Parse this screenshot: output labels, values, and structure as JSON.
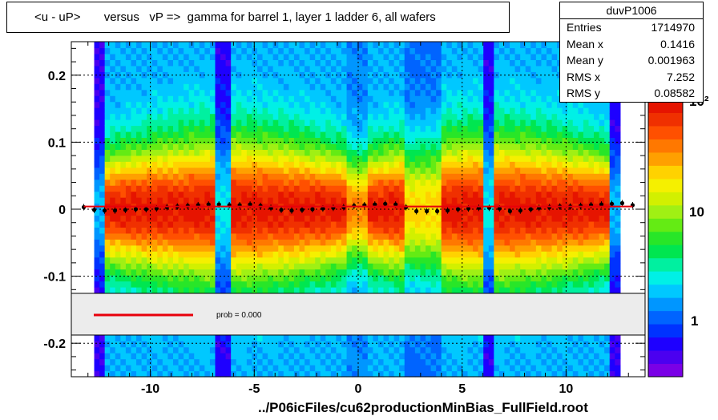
{
  "title": "<u - uP>       versus   vP =>  gamma for barrel 1, layer 1 ladder 6, all wafers",
  "footer": "../P06icFiles/cu62productionMinBias_FullField.root",
  "stats": {
    "name": "duvP1006",
    "rows": [
      {
        "label": "Entries",
        "value": "1714970"
      },
      {
        "label": "Mean x",
        "value": "0.1416"
      },
      {
        "label": "Mean y",
        "value": "0.001963"
      },
      {
        "label": "RMS x",
        "value": "7.252"
      },
      {
        "label": "RMS y",
        "value": "0.08582"
      }
    ]
  },
  "legend": {
    "fit_label": "prob = 0.000",
    "fit_color": "#e8000b"
  },
  "colorbar": {
    "labels": [
      "1",
      "10",
      "10²"
    ]
  },
  "chart_data": {
    "type": "heatmap",
    "title": "<u - uP>       versus   vP =>  gamma for barrel 1, layer 1 ladder 6, all wafers",
    "xlabel": "",
    "ylabel": "",
    "xlim": [
      -13.8,
      13.8
    ],
    "ylim": [
      -0.25,
      0.25
    ],
    "x_ticks": [
      "-10",
      "-5",
      "0",
      "5",
      "10"
    ],
    "y_ticks": [
      "-0.2",
      "-0.1",
      "0",
      "0.1",
      "0.2"
    ],
    "z_scale": "log",
    "grid": true,
    "profile": {
      "x": [
        -13.2,
        -12.7,
        -12.2,
        -11.7,
        -11.2,
        -10.7,
        -10.2,
        -9.7,
        -9.2,
        -8.7,
        -8.2,
        -7.7,
        -7.2,
        -6.7,
        -6.2,
        -5.7,
        -5.2,
        -4.7,
        -4.2,
        -3.7,
        -3.2,
        -2.7,
        -2.2,
        -1.7,
        -1.2,
        -0.7,
        -0.2,
        0.3,
        0.8,
        1.3,
        1.8,
        2.3,
        2.8,
        3.3,
        3.8,
        4.3,
        4.8,
        5.3,
        5.8,
        6.3,
        6.8,
        7.3,
        7.8,
        8.3,
        8.7,
        9.2,
        9.7,
        10.2,
        10.7,
        11.2,
        11.7,
        12.2,
        12.7,
        13.2
      ],
      "y": [
        0.003,
        -0.001,
        -0.002,
        -0.002,
        -0.001,
        0.0,
        0.0,
        0.001,
        0.003,
        0.004,
        0.005,
        0.006,
        0.007,
        0.007,
        0.006,
        0.006,
        0.007,
        0.005,
        0.002,
        -0.001,
        -0.002,
        -0.001,
        0.0,
        0.001,
        0.002,
        0.003,
        0.005,
        0.006,
        0.007,
        0.008,
        0.007,
        0.003,
        -0.003,
        -0.003,
        -0.003,
        -0.002,
        0.0,
        0.001,
        0.002,
        0.002,
        0.001,
        -0.003,
        -0.002,
        0.0,
        0.002,
        0.003,
        0.004,
        0.004,
        0.005,
        0.006,
        0.007,
        0.008,
        0.009,
        0.006
      ]
    },
    "fit": {
      "x_range": [
        -13.2,
        13.2
      ],
      "y": 0.004,
      "color": "#e8000b"
    }
  }
}
